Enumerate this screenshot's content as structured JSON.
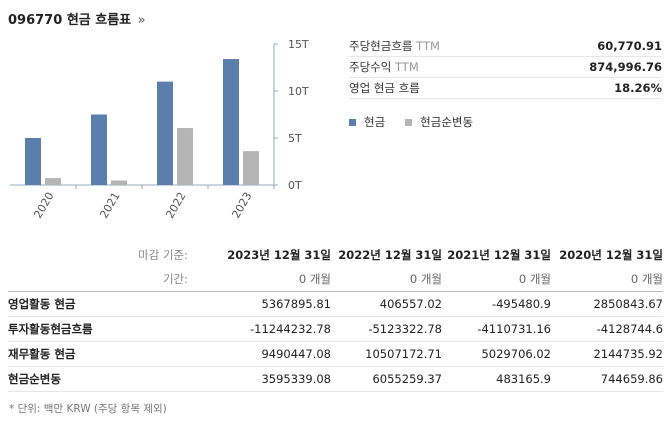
{
  "header": {
    "ticker": "096770",
    "title": "현금 흐름표",
    "arrow": "»"
  },
  "chart_data": {
    "type": "bar",
    "categories": [
      "2020",
      "2021",
      "2022",
      "2023"
    ],
    "series": [
      {
        "name": "현금",
        "values": [
          5.0,
          7.5,
          11.0,
          13.4
        ],
        "color": "#5b7fad"
      },
      {
        "name": "현금순변동",
        "values": [
          0.74,
          0.48,
          6.06,
          3.6
        ],
        "color": "#b5b5b5"
      }
    ],
    "y_ticks": [
      "15T",
      "10T",
      "5T",
      "0T"
    ],
    "ylim": [
      0,
      15
    ],
    "grid": false,
    "xlabel": "",
    "ylabel": ""
  },
  "stats": [
    {
      "label": "주당현금흐름",
      "suffix": "TTM",
      "value": "60,770.91"
    },
    {
      "label": "주당수익",
      "suffix": "TTM",
      "value": "874,996.76"
    },
    {
      "label": "영업 현금 흐름",
      "suffix": "",
      "value": "18.26%"
    }
  ],
  "legend": [
    {
      "label": "현금",
      "color": "#5b7fad"
    },
    {
      "label": "현금순변동",
      "color": "#b5b5b5"
    }
  ],
  "table": {
    "date_label": "마감 기준:",
    "dates": [
      "2023년 12월 31일",
      "2022년 12월 31일",
      "2021년 12월 31일",
      "2020년 12월 31일"
    ],
    "period_label": "기간:",
    "periods": [
      "0 개월",
      "0 개월",
      "0 개월",
      "0 개월"
    ],
    "rows": [
      {
        "label": "영업활동 현금",
        "values": [
          "5367895.81",
          "406557.02",
          "-495480.9",
          "2850843.67"
        ]
      },
      {
        "label": "투자활동현금흐름",
        "values": [
          "-11244232.78",
          "-5123322.78",
          "-4110731.16",
          "-4128744.6"
        ]
      },
      {
        "label": "재무활동 현금",
        "values": [
          "9490447.08",
          "10507172.71",
          "5029706.02",
          "2144735.92"
        ]
      },
      {
        "label": "현금순변동",
        "values": [
          "3595339.08",
          "6055259.37",
          "483165.9",
          "744659.86"
        ]
      }
    ]
  },
  "footnote": "* 단위: 백만 KRW (주당 항목 제외)"
}
